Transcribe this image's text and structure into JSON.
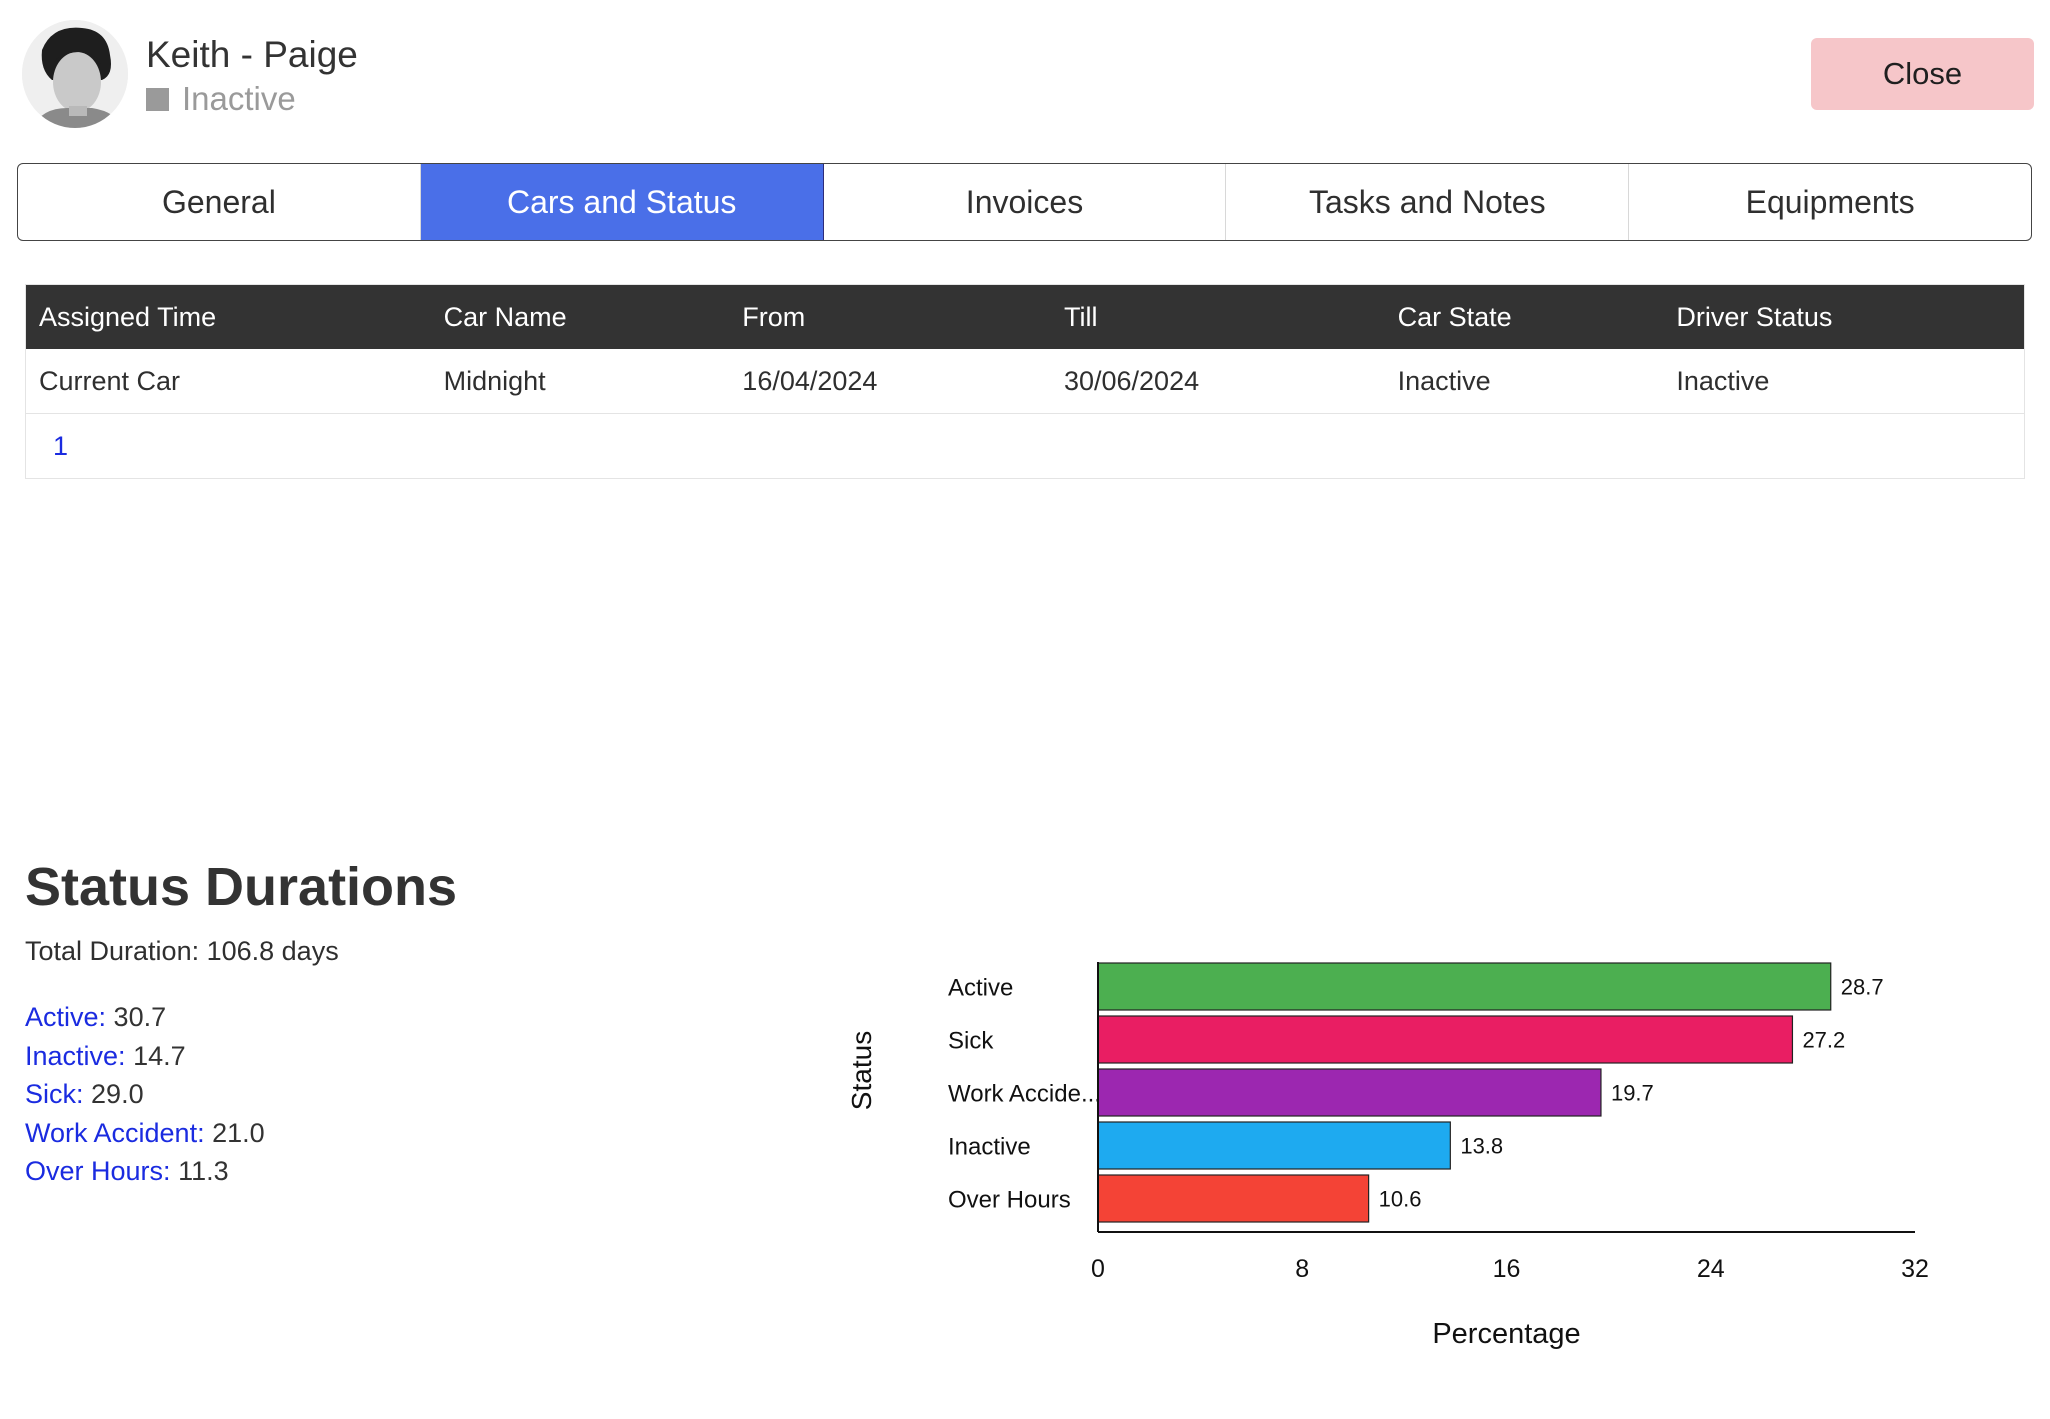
{
  "header": {
    "name": "Keith - Paige",
    "status": "Inactive",
    "close_label": "Close"
  },
  "tabs": [
    {
      "label": "General",
      "active": false
    },
    {
      "label": "Cars and Status",
      "active": true
    },
    {
      "label": "Invoices",
      "active": false
    },
    {
      "label": "Tasks and Notes",
      "active": false
    },
    {
      "label": "Equipments",
      "active": false
    }
  ],
  "table": {
    "headers": [
      "Assigned Time",
      "Car Name",
      "From",
      "Till",
      "Car State",
      "Driver Status"
    ],
    "rows": [
      [
        "Current Car",
        "Midnight",
        "16/04/2024",
        "30/06/2024",
        "Inactive",
        "Inactive"
      ]
    ],
    "page": "1"
  },
  "status_durations": {
    "title": "Status Durations",
    "total": "Total Duration: 106.8 days",
    "items": [
      {
        "label": "Active:",
        "value": "30.7"
      },
      {
        "label": "Inactive:",
        "value": "14.7"
      },
      {
        "label": "Sick:",
        "value": "29.0"
      },
      {
        "label": "Work Accident:",
        "value": "21.0"
      },
      {
        "label": "Over Hours:",
        "value": "11.3"
      }
    ]
  },
  "chart_data": {
    "type": "bar",
    "orientation": "horizontal",
    "categories": [
      "Active",
      "Sick",
      "Work Accide...",
      "Inactive",
      "Over Hours"
    ],
    "values": [
      28.7,
      27.2,
      19.7,
      13.8,
      10.6
    ],
    "data_labels": [
      "28.7",
      "27.2",
      "19.7",
      "13.8",
      "10.6"
    ],
    "colors": [
      "#4caf50",
      "#e91e63",
      "#9c27b0",
      "#1eaaf0",
      "#f44336"
    ],
    "xlabel": "Percentage",
    "ylabel": "Status",
    "xlim": [
      0,
      32
    ],
    "xticks": [
      0,
      8,
      16,
      24,
      32
    ],
    "grid": false
  }
}
